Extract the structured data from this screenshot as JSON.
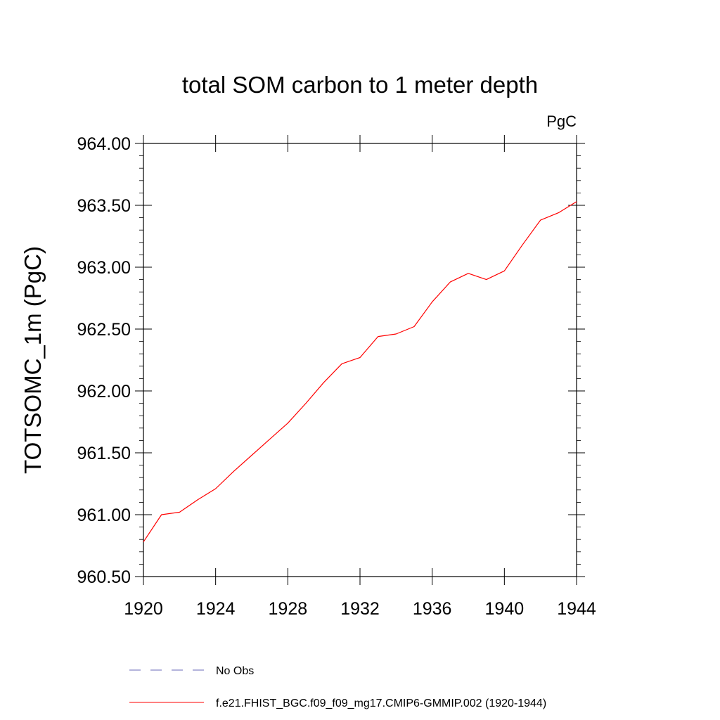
{
  "chart_data": {
    "type": "line",
    "title": "total SOM carbon to 1 meter depth",
    "units_label": "PgC",
    "xlabel": "",
    "ylabel": "TOTSOMC_1m  (PgC)",
    "xlim": [
      1920,
      1944
    ],
    "ylim": [
      960.5,
      964.0
    ],
    "x_ticks": [
      "1920",
      "1924",
      "1928",
      "1932",
      "1936",
      "1940",
      "1944"
    ],
    "y_ticks": [
      "960.50",
      "961.00",
      "961.50",
      "962.00",
      "962.50",
      "963.00",
      "963.50",
      "964.00"
    ],
    "x_tick_values": [
      1920,
      1924,
      1928,
      1932,
      1936,
      1940,
      1944
    ],
    "y_tick_values": [
      960.5,
      961.0,
      961.5,
      962.0,
      962.5,
      963.0,
      963.5,
      964.0
    ],
    "series": [
      {
        "name": "f.e21.FHIST_BGC.f09_f09_mg17.CMIP6-GMMIP.002 (1920-1944)",
        "color": "#ff0000",
        "style": "solid",
        "x": [
          1920,
          1921,
          1922,
          1923,
          1924,
          1925,
          1926,
          1927,
          1928,
          1929,
          1930,
          1931,
          1932,
          1933,
          1934,
          1935,
          1936,
          1937,
          1938,
          1939,
          1940,
          1941,
          1942,
          1943,
          1944
        ],
        "values": [
          960.78,
          961.0,
          961.02,
          961.12,
          961.21,
          961.35,
          961.48,
          961.61,
          961.74,
          961.9,
          962.07,
          962.22,
          962.27,
          962.44,
          962.46,
          962.52,
          962.72,
          962.88,
          962.95,
          962.9,
          962.97,
          963.18,
          963.38,
          963.44,
          963.53
        ]
      }
    ],
    "legend": [
      {
        "label": "No Obs",
        "color": "#6a6ab8",
        "style": "dashed"
      },
      {
        "label": "f.e21.FHIST_BGC.f09_f09_mg17.CMIP6-GMMIP.002 (1920-1944)",
        "color": "#ff0000",
        "style": "solid"
      }
    ]
  }
}
